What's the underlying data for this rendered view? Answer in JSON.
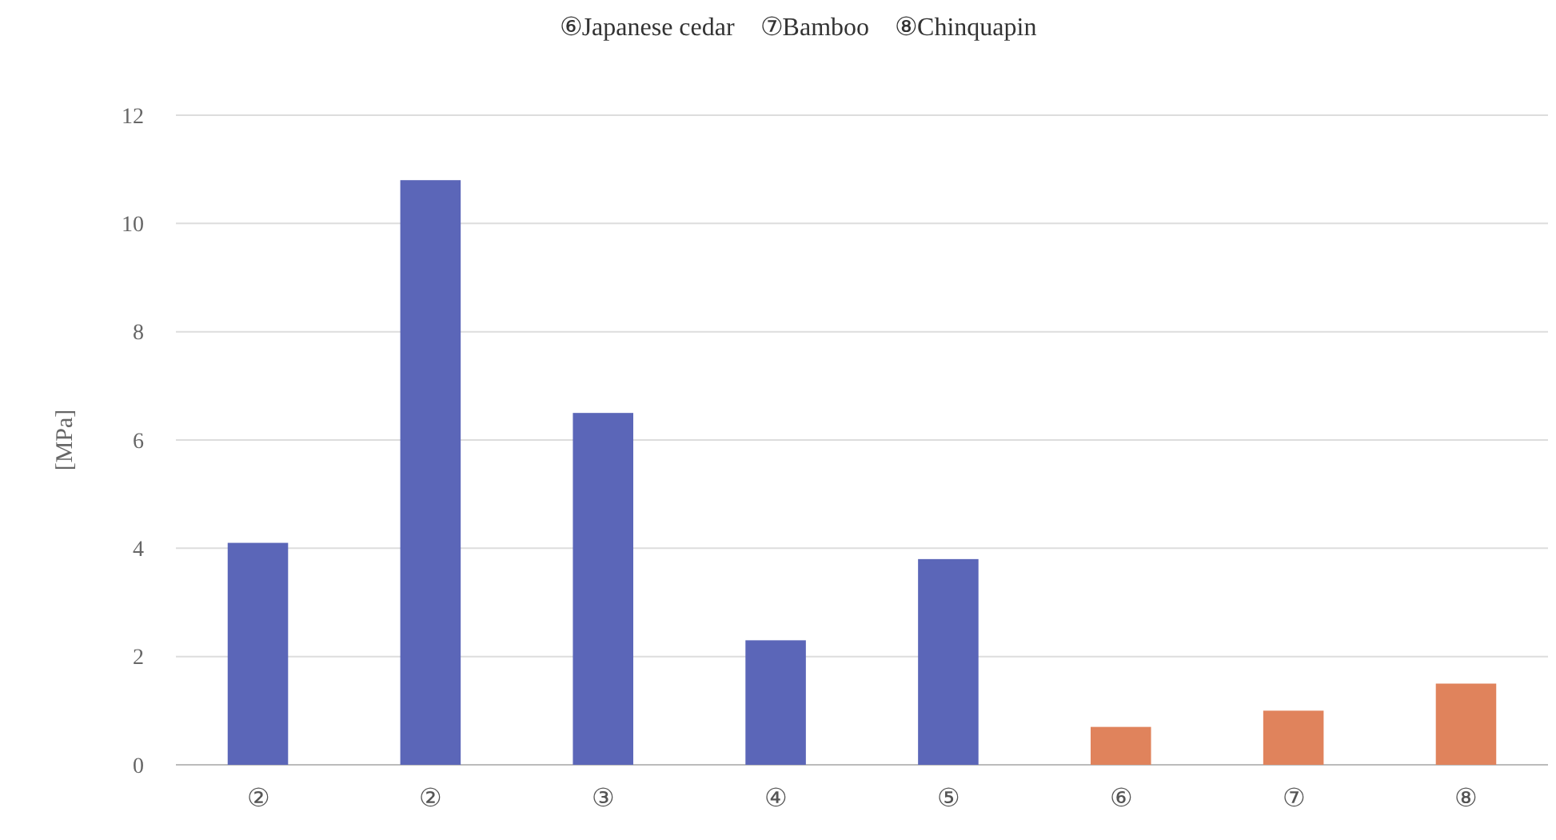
{
  "chart_data": {
    "type": "bar",
    "title": "⑥Japanese cedar　⑦Bamboo　⑧Chinquapin",
    "ylabel": "[MPa]",
    "categories": [
      "②",
      "②",
      "③",
      "④",
      "⑤",
      "⑥",
      "⑦",
      "⑧"
    ],
    "values": [
      4.1,
      10.8,
      6.5,
      2.3,
      3.8,
      0.7,
      1.0,
      1.5
    ],
    "colors": [
      "#5b66b8",
      "#5b66b8",
      "#5b66b8",
      "#5b66b8",
      "#5b66b8",
      "#e0835c",
      "#e0835c",
      "#e0835c"
    ],
    "ylim": [
      0,
      12
    ],
    "yticks": [
      0,
      2,
      4,
      6,
      8,
      10,
      12
    ],
    "grid": "y"
  }
}
